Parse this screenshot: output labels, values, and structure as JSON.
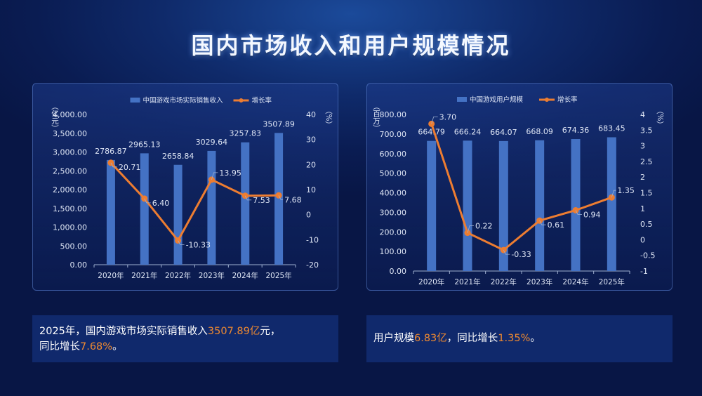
{
  "title": "国内市场收入和用户规模情况",
  "colors": {
    "bar": "#4472c4",
    "line": "#ed7d31"
  },
  "chart_data": [
    {
      "type": "bar+line",
      "legend": [
        "中国游戏市场实际销售收入",
        "增长率"
      ],
      "legend_position": "top-center",
      "categories": [
        "2020年",
        "2021年",
        "2022年",
        "2023年",
        "2024年",
        "2025年"
      ],
      "ylabel": "（亿元）",
      "y2label": "（%）",
      "ylim": [
        0,
        4000
      ],
      "yticks": [
        "0.00",
        "500.00",
        "1,000.00",
        "1,500.00",
        "2,000.00",
        "2,500.00",
        "3,000.00",
        "3,500.00",
        "4,000.00"
      ],
      "y2lim": [
        -20,
        40
      ],
      "y2ticks": [
        "-20",
        "-10",
        "0",
        "10",
        "20",
        "30",
        "40"
      ],
      "series": [
        {
          "name": "中国游戏市场实际销售收入",
          "values": [
            2786.87,
            2965.13,
            2658.84,
            3029.64,
            3257.83,
            3507.89
          ],
          "labels": [
            "2786.87",
            "2965.13",
            "2658.84",
            "3029.64",
            "3257.83",
            "3507.89"
          ]
        },
        {
          "name": "增长率",
          "values": [
            20.71,
            6.4,
            -10.33,
            13.95,
            7.53,
            7.68
          ],
          "labels": [
            "20.71",
            "6.40",
            "-10.33",
            "13.95",
            "7.53",
            "7.68"
          ]
        }
      ]
    },
    {
      "type": "bar+line",
      "legend": [
        "中国游戏用户规模",
        "增长率"
      ],
      "legend_position": "top-center",
      "categories": [
        "2020年",
        "2021年",
        "2022年",
        "2023年",
        "2024年",
        "2025年"
      ],
      "ylabel": "（百万）",
      "y2label": "（%）",
      "ylim": [
        0,
        800
      ],
      "yticks": [
        "0.00",
        "100.00",
        "200.00",
        "300.00",
        "400.00",
        "500.00",
        "600.00",
        "700.00",
        "800.00"
      ],
      "y2lim": [
        -1,
        4
      ],
      "y2ticks": [
        "-1",
        "-0.5",
        "0",
        "0.5",
        "1",
        "1.5",
        "2",
        "2.5",
        "3",
        "3.5",
        "4"
      ],
      "series": [
        {
          "name": "中国游戏用户规模",
          "values": [
            664.79,
            666.24,
            664.07,
            668.09,
            674.36,
            683.45
          ],
          "labels": [
            "664.79",
            "666.24",
            "664.07",
            "668.09",
            "674.36",
            "683.45"
          ]
        },
        {
          "name": "增长率",
          "values": [
            3.7,
            0.22,
            -0.33,
            0.61,
            0.94,
            1.35
          ],
          "labels": [
            "3.70",
            "0.22",
            "-0.33",
            "0.61",
            "0.94",
            "1.35"
          ]
        }
      ]
    }
  ],
  "summary_left": {
    "t1": "2025年，国内游戏市场实际销售收入",
    "v1": "3507.89亿",
    "t2": "元，",
    "t3": "同比增长",
    "v2": "7.68%",
    "t4": "。"
  },
  "summary_right": {
    "t1": "用户规模",
    "v1": "6.83亿",
    "t2": "，同比增长",
    "v2": "1.35%",
    "t3": "。"
  }
}
